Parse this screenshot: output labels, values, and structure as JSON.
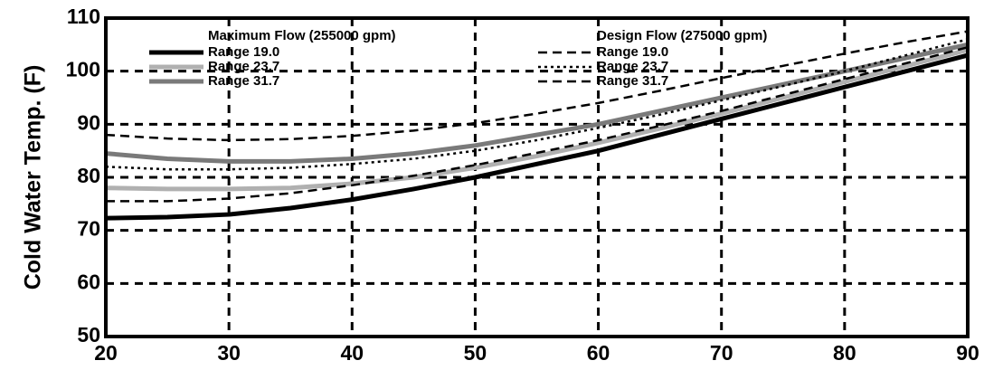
{
  "chart_data": {
    "type": "line",
    "y_label": "Cold Water Temp. (F)",
    "legend_titles": [
      "Maximum Flow (255000 gpm)",
      "Design Flow (275000 gpm)"
    ],
    "x": [
      20,
      25,
      30,
      35,
      40,
      45,
      50,
      55,
      60,
      65,
      70,
      75,
      80,
      85,
      90
    ],
    "xlim": [
      20,
      90
    ],
    "xticks": [
      20,
      30,
      40,
      50,
      60,
      70,
      80,
      90
    ],
    "ylim": [
      50,
      110
    ],
    "yticks": [
      50,
      60,
      70,
      80,
      90,
      100,
      110
    ],
    "grid": true,
    "series": [
      {
        "name": "Range 19.0",
        "color": "#000000",
        "dash": "solid",
        "values": [
          72.3,
          72.5,
          73,
          74.2,
          75.8,
          77.8,
          80,
          82.5,
          85,
          88,
          91,
          94,
          97,
          100,
          103
        ]
      },
      {
        "name": "Range 23.7",
        "color": "#b0b0b0",
        "dash": "solid",
        "values": [
          78,
          77.8,
          77.8,
          78,
          78.8,
          80,
          81.8,
          84,
          86.5,
          89.2,
          92,
          95,
          98,
          101,
          104
        ]
      },
      {
        "name": "Range 31.7",
        "color": "#7a7a7a",
        "dash": "solid",
        "values": [
          84.5,
          83.5,
          83,
          83,
          83.5,
          84.5,
          86,
          88,
          90,
          92.5,
          95,
          97.5,
          100,
          102.5,
          105
        ]
      },
      {
        "name": "Range 19.0",
        "color": "#000000",
        "dash": "dashed",
        "values": [
          75.5,
          75.5,
          76,
          77,
          78.5,
          80.3,
          82.3,
          84.6,
          87,
          89.7,
          92.5,
          95.5,
          98.5,
          101.5,
          104.5
        ]
      },
      {
        "name": "Range 23.7",
        "color": "#000000",
        "dash": "dotted",
        "values": [
          82,
          81.5,
          81.5,
          81.8,
          82.5,
          83.5,
          85,
          87,
          89.3,
          91.8,
          94.5,
          97.2,
          100,
          103,
          106
        ]
      },
      {
        "name": "Range 31.7",
        "color": "#000000",
        "dash": "dashed",
        "values": [
          88,
          87.3,
          87,
          87.2,
          87.8,
          88.8,
          90.2,
          92,
          94,
          96.3,
          98.7,
          101,
          103.3,
          105.5,
          107.5
        ]
      }
    ]
  }
}
